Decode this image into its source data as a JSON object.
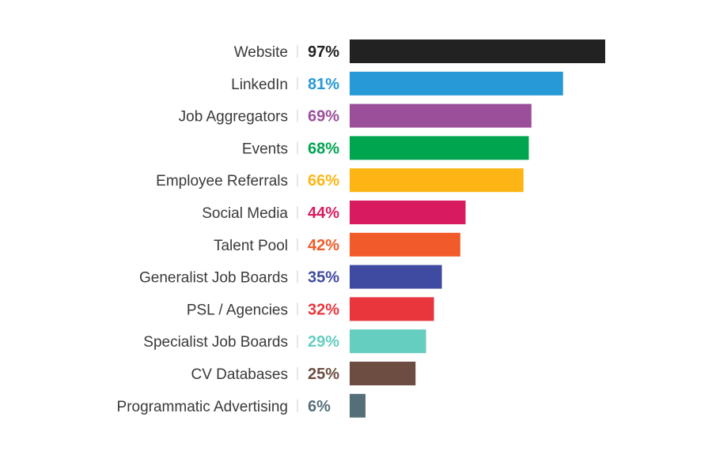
{
  "chart_data": {
    "type": "bar",
    "orientation": "horizontal",
    "title": "",
    "xlabel": "",
    "ylabel": "",
    "xlim": [
      0,
      100
    ],
    "grid": false,
    "legend": "none",
    "categories": [
      "Website",
      "LinkedIn",
      "Job Aggregators",
      "Events",
      "Employee Referrals",
      "Social Media",
      "Talent Pool",
      "Generalist Job Boards",
      "PSL / Agencies",
      "Specialist Job Boards",
      "CV Databases",
      "Programmatic Advertising"
    ],
    "values": [
      97,
      81,
      69,
      68,
      66,
      44,
      42,
      35,
      32,
      29,
      25,
      6
    ],
    "value_labels": [
      "97%",
      "81%",
      "69%",
      "68%",
      "66%",
      "44%",
      "42%",
      "35%",
      "32%",
      "29%",
      "25%",
      "6%"
    ],
    "colors": [
      "#222222",
      "#2699d6",
      "#9b4f9b",
      "#00a550",
      "#fdb515",
      "#d81b60",
      "#f15a29",
      "#3f4ba0",
      "#e8363c",
      "#66cdc1",
      "#6d4c41",
      "#546e7a"
    ]
  }
}
